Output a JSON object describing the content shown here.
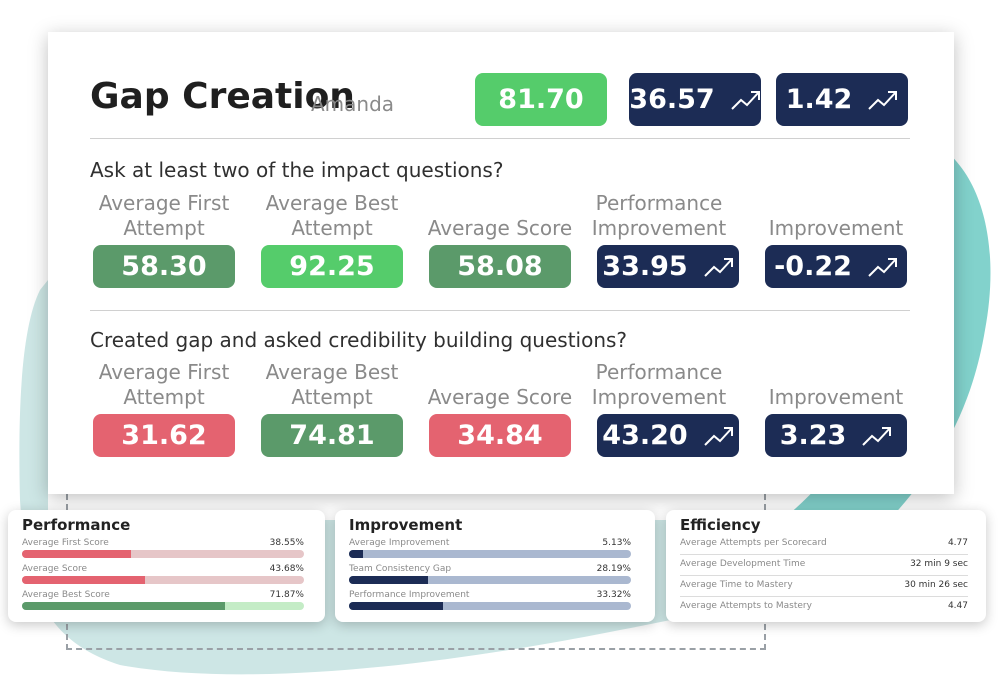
{
  "header": {
    "title": "Gap Creation",
    "subtitle": "Amanda",
    "score": "81.70",
    "performance_improvement": "36.57",
    "improvement": "1.42"
  },
  "sections": [
    {
      "question": "Ask at least two of the impact questions?",
      "metrics": [
        {
          "label": "Average First Attempt",
          "value": "58.30"
        },
        {
          "label": "Average Best Attempt",
          "value": "92.25"
        },
        {
          "label": "Average Score",
          "value": "58.08"
        },
        {
          "label": "Performance Improvement",
          "value": "33.95"
        },
        {
          "label": "Improvement",
          "value": "-0.22"
        }
      ]
    },
    {
      "question": "Created gap and asked credibility building questions?",
      "metrics": [
        {
          "label": "Average First Attempt",
          "value": "31.62"
        },
        {
          "label": "Average Best Attempt",
          "value": "74.81"
        },
        {
          "label": "Average Score",
          "value": "34.84"
        },
        {
          "label": "Performance Improvement",
          "value": "43.20"
        },
        {
          "label": "Improvement",
          "value": "3.23"
        }
      ]
    }
  ],
  "performance": {
    "title": "Performance",
    "rows": [
      {
        "label": "Average First Score",
        "value": "38.55%",
        "fraction": 0.3855
      },
      {
        "label": "Average Score",
        "value": "43.68%",
        "fraction": 0.4368
      },
      {
        "label": "Average Best Score",
        "value": "71.87%",
        "fraction": 0.7187
      }
    ]
  },
  "improvement_card": {
    "title": "Improvement",
    "rows": [
      {
        "label": "Average Improvement",
        "value": "5.13%",
        "fraction": 0.0513
      },
      {
        "label": "Team Consistency Gap",
        "value": "28.19%",
        "fraction": 0.2819
      },
      {
        "label": "Performance Improvement",
        "value": "33.32%",
        "fraction": 0.3332
      }
    ]
  },
  "efficiency": {
    "title": "Efficiency",
    "rows": [
      {
        "label": "Average Attempts per Scorecard",
        "value": "4.77"
      },
      {
        "label": "Average Development Time",
        "value": "32 min 9 sec"
      },
      {
        "label": "Average Time to Mastery",
        "value": "30 min 26 sec"
      },
      {
        "label": "Average Attempts to Mastery",
        "value": "4.47"
      }
    ]
  },
  "colors": {
    "green_dark": "#5b9a6a",
    "green_bright": "#55cc6b",
    "navy": "#1c2c55",
    "red": "#e46370",
    "teal_background": "#7fd1cb"
  }
}
